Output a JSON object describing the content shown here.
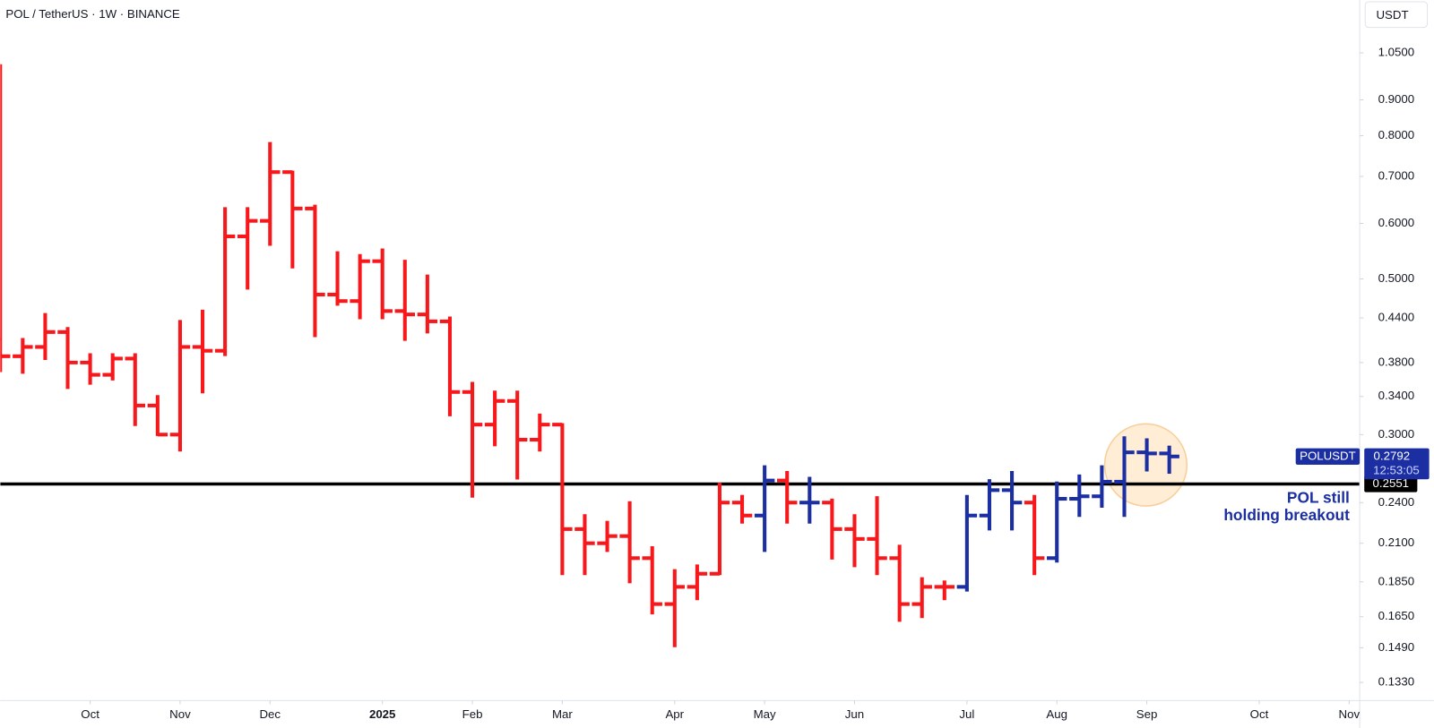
{
  "chart_data": {
    "type": "ohlc",
    "title": "POL / TetherUS · 1W · BINANCE",
    "currency": "USDT",
    "log_scale": true,
    "x": [
      0,
      1,
      2,
      3,
      4,
      5,
      6,
      7,
      8,
      9,
      10,
      11,
      12,
      13,
      14,
      15,
      16,
      17,
      18,
      19,
      20,
      21,
      22,
      23,
      24,
      25,
      26,
      27,
      28,
      29,
      30,
      31,
      32,
      33,
      34,
      35,
      36,
      37,
      38,
      39,
      40,
      41,
      42,
      43,
      44,
      45,
      46,
      47,
      48,
      49,
      50,
      51,
      52
    ],
    "open": [
      0.41,
      0.388,
      0.4,
      0.42,
      0.38,
      0.365,
      0.385,
      0.33,
      0.3,
      0.4,
      0.395,
      0.575,
      0.605,
      0.71,
      0.63,
      0.475,
      0.465,
      0.53,
      0.45,
      0.445,
      0.435,
      0.345,
      0.31,
      0.335,
      0.295,
      0.31,
      0.22,
      0.21,
      0.215,
      0.2,
      0.172,
      0.182,
      0.19,
      0.24,
      0.23,
      0.258,
      0.24,
      0.24,
      0.22,
      0.213,
      0.2,
      0.172,
      0.182,
      0.182,
      0.23,
      0.25,
      0.24,
      0.2,
      0.243,
      0.245,
      0.257,
      0.283,
      0.282
    ],
    "high": [
      1.007,
      0.41,
      0.445,
      0.425,
      0.39,
      0.39,
      0.39,
      0.34,
      0.435,
      0.45,
      0.63,
      0.63,
      0.78,
      0.71,
      0.635,
      0.545,
      0.54,
      0.55,
      0.53,
      0.505,
      0.44,
      0.355,
      0.345,
      0.345,
      0.32,
      0.31,
      0.23,
      0.225,
      0.24,
      0.207,
      0.192,
      0.195,
      0.255,
      0.245,
      0.27,
      0.265,
      0.26,
      0.242,
      0.23,
      0.244,
      0.208,
      0.187,
      0.185,
      0.245,
      0.258,
      0.265,
      0.245,
      0.256,
      0.262,
      0.27,
      0.297,
      0.295,
      0.288
    ],
    "low": [
      0.37,
      0.368,
      0.385,
      0.35,
      0.355,
      0.36,
      0.31,
      0.3,
      0.285,
      0.345,
      0.39,
      0.485,
      0.56,
      0.52,
      0.415,
      0.46,
      0.44,
      0.44,
      0.41,
      0.42,
      0.32,
      0.245,
      0.29,
      0.26,
      0.285,
      0.19,
      0.19,
      0.205,
      0.185,
      0.167,
      0.15,
      0.175,
      0.19,
      0.225,
      0.205,
      0.225,
      0.225,
      0.2,
      0.195,
      0.19,
      0.163,
      0.165,
      0.175,
      0.18,
      0.22,
      0.22,
      0.19,
      0.198,
      0.23,
      0.237,
      0.23,
      0.267,
      0.265
    ],
    "close": [
      0.388,
      0.4,
      0.42,
      0.38,
      0.365,
      0.385,
      0.33,
      0.3,
      0.4,
      0.395,
      0.575,
      0.605,
      0.71,
      0.63,
      0.475,
      0.465,
      0.53,
      0.45,
      0.445,
      0.435,
      0.345,
      0.31,
      0.335,
      0.295,
      0.31,
      0.22,
      0.21,
      0.215,
      0.2,
      0.172,
      0.182,
      0.19,
      0.24,
      0.23,
      0.258,
      0.24,
      0.24,
      0.22,
      0.213,
      0.2,
      0.172,
      0.182,
      0.182,
      0.23,
      0.25,
      0.24,
      0.2,
      0.243,
      0.245,
      0.257,
      0.283,
      0.282,
      0.2792
    ],
    "bar_colors": [
      "#f7181c",
      "#f7181c",
      "#f7181c",
      "#f7181c",
      "#f7181c",
      "#f7181c",
      "#f7181c",
      "#f7181c",
      "#f7181c",
      "#f7181c",
      "#f7181c",
      "#f7181c",
      "#f7181c",
      "#f7181c",
      "#f7181c",
      "#f7181c",
      "#f7181c",
      "#f7181c",
      "#f7181c",
      "#f7181c",
      "#f7181c",
      "#f7181c",
      "#f7181c",
      "#f7181c",
      "#f7181c",
      "#f7181c",
      "#f7181c",
      "#f7181c",
      "#f7181c",
      "#f7181c",
      "#f7181c",
      "#f7181c",
      "#f7181c",
      "#f7181c",
      "#1b2fa3",
      "#f7181c",
      "#1b2fa3",
      "#f7181c",
      "#f7181c",
      "#f7181c",
      "#f7181c",
      "#f7181c",
      "#f7181c",
      "#1b2fa3",
      "#1b2fa3",
      "#1b2fa3",
      "#f7181c",
      "#1b2fa3",
      "#1b2fa3",
      "#1b2fa3",
      "#1b2fa3",
      "#1b2fa3",
      "#1b2fa3"
    ],
    "xlim": [
      0,
      60.47
    ],
    "xticks": [
      {
        "value": 4,
        "label": "Oct"
      },
      {
        "value": 8,
        "label": "Nov"
      },
      {
        "value": 12,
        "label": "Dec"
      },
      {
        "value": 17,
        "label": "2025"
      },
      {
        "value": 21,
        "label": "Feb"
      },
      {
        "value": 25,
        "label": "Mar"
      },
      {
        "value": 30,
        "label": "Apr"
      },
      {
        "value": 34,
        "label": "May"
      },
      {
        "value": 38,
        "label": "Jun"
      },
      {
        "value": 43,
        "label": "Jul"
      },
      {
        "value": 47,
        "label": "Aug"
      },
      {
        "value": 51,
        "label": "Sep"
      },
      {
        "value": 56,
        "label": "Oct"
      },
      {
        "value": 60,
        "label": "Nov"
      }
    ],
    "ylim": [
      0.1253,
      1.249
    ],
    "yticks": [
      {
        "value": 1.05,
        "label": "1.0500"
      },
      {
        "value": 0.9,
        "label": "0.9000"
      },
      {
        "value": 0.8,
        "label": "0.8000"
      },
      {
        "value": 0.7,
        "label": "0.7000"
      },
      {
        "value": 0.6,
        "label": "0.6000"
      },
      {
        "value": 0.5,
        "label": "0.5000"
      },
      {
        "value": 0.44,
        "label": "0.4400"
      },
      {
        "value": 0.38,
        "label": "0.3800"
      },
      {
        "value": 0.34,
        "label": "0.3400"
      },
      {
        "value": 0.3,
        "label": "0.3000"
      },
      {
        "value": 0.24,
        "label": "0.2400"
      },
      {
        "value": 0.21,
        "label": "0.2100"
      },
      {
        "value": 0.185,
        "label": "0.1850"
      },
      {
        "value": 0.165,
        "label": "0.1650"
      },
      {
        "value": 0.149,
        "label": "0.1490"
      },
      {
        "value": 0.133,
        "label": "0.1330"
      }
    ],
    "hline": {
      "value": 0.2551,
      "color": "#000000"
    },
    "last_price": {
      "name": "POLUSDT",
      "value": 0.2792,
      "countdown": "12:53:05",
      "color": "#1b2fa3"
    },
    "annotation": {
      "lines": [
        "POL still",
        "holding breakout"
      ],
      "color": "#1b2fa3"
    }
  }
}
